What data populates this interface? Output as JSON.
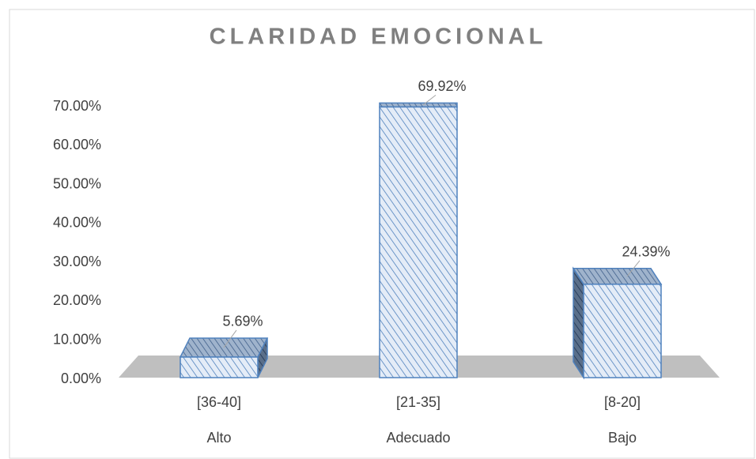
{
  "chart_data": {
    "type": "bar3d",
    "title": "CLARIDAD EMOCIONAL",
    "categories": [
      "[36-40]",
      "[21-35]",
      "[8-20]"
    ],
    "category_sublabels": [
      "Alto",
      "Adecuado",
      "Bajo"
    ],
    "values": [
      5.69,
      69.92,
      24.39
    ],
    "value_labels": [
      "5.69%",
      "69.92%",
      "24.39%"
    ],
    "color": "#4f81bd",
    "ylim": [
      0,
      70
    ],
    "yticks": [
      {
        "value": 0,
        "label": "0.00%"
      },
      {
        "value": 10,
        "label": "10.00%"
      },
      {
        "value": 20,
        "label": "20.00%"
      },
      {
        "value": 30,
        "label": "30.00%"
      },
      {
        "value": 40,
        "label": "40.00%"
      },
      {
        "value": 50,
        "label": "50.00%"
      },
      {
        "value": 60,
        "label": "60.00%"
      },
      {
        "value": 70,
        "label": "70.00%"
      }
    ],
    "grid": false
  }
}
